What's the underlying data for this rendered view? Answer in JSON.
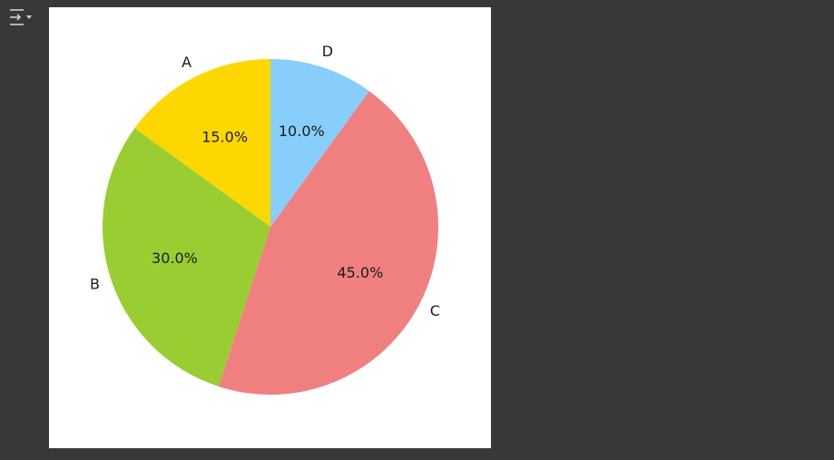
{
  "toolbar": {
    "icon": "output-collapse-icon"
  },
  "chart_data": {
    "type": "pie",
    "categories": [
      "A",
      "B",
      "C",
      "D"
    ],
    "values": [
      15.0,
      30.0,
      45.0,
      10.0
    ],
    "percent_labels": [
      "15.0%",
      "30.0%",
      "45.0%",
      "10.0%"
    ],
    "colors": [
      "#ffd700",
      "#9acd32",
      "#f08080",
      "#87cefa"
    ],
    "start_angle_deg": 90,
    "direction": "counterclockwise",
    "title": ""
  }
}
